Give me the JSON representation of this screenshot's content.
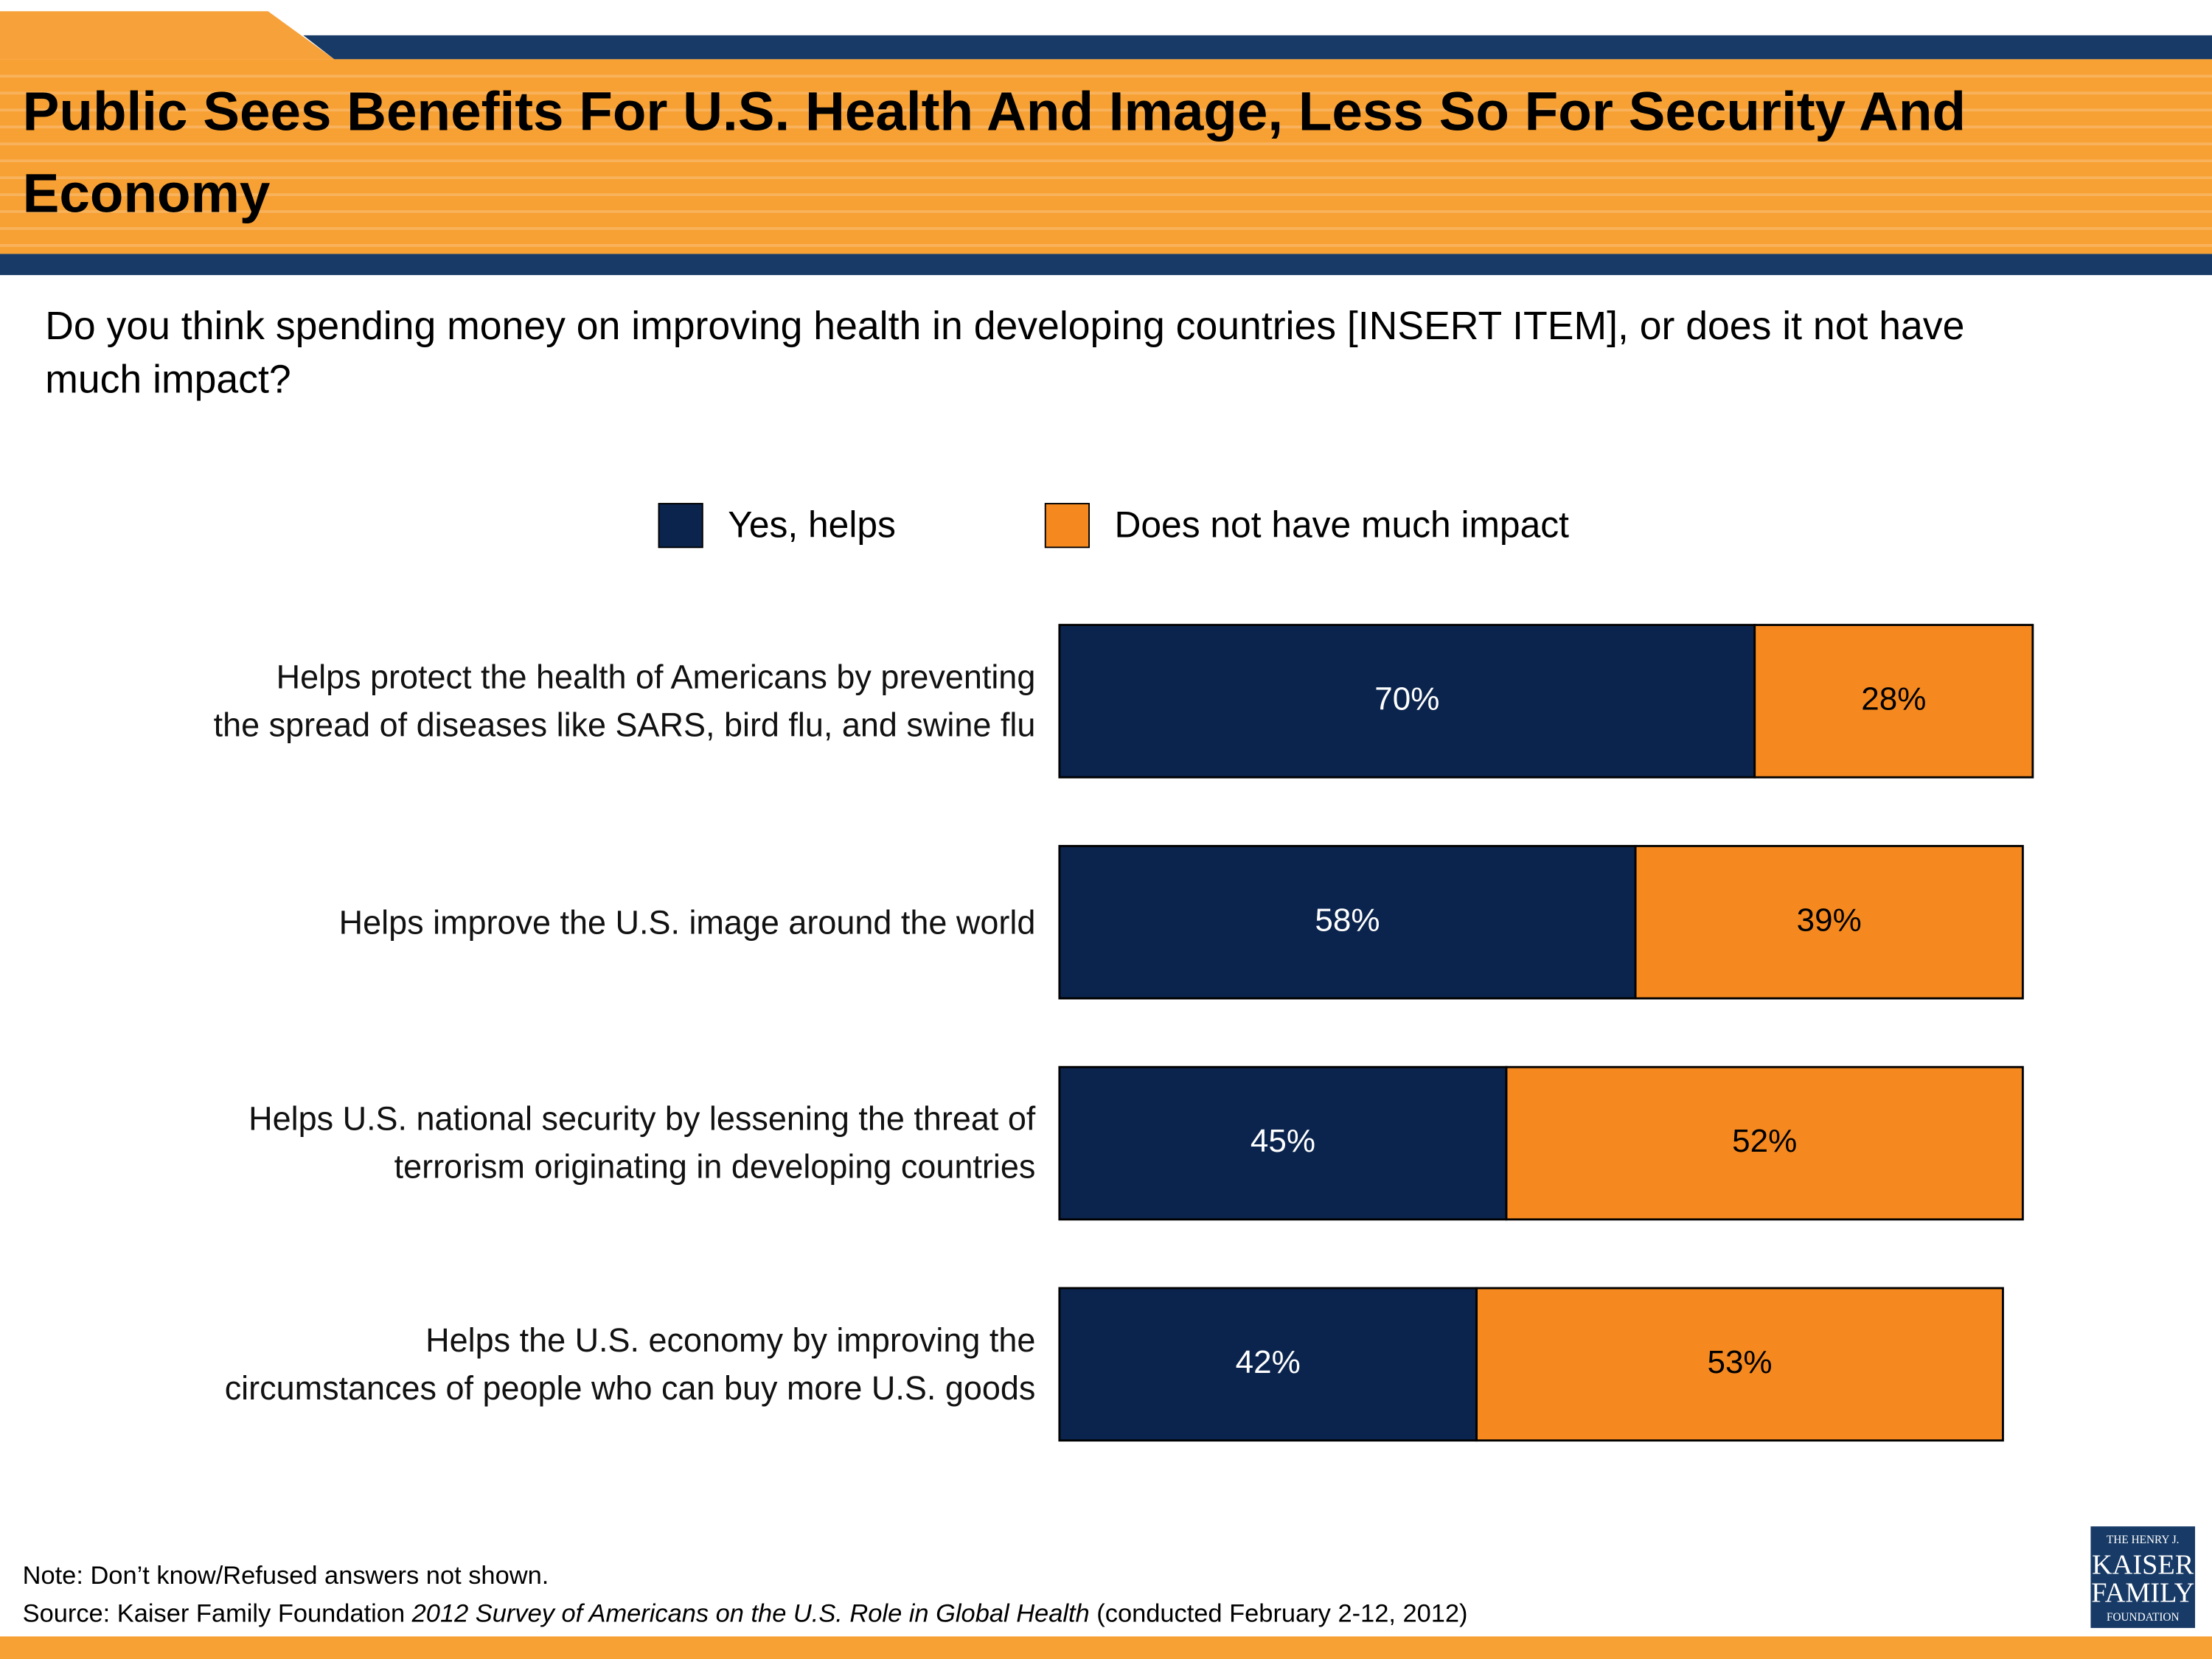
{
  "chart_data": {
    "type": "stacked-bar-horizontal",
    "title": [
      "Public Sees Benefits For U.S. Health And Image, Less So For Security And",
      "Economy"
    ],
    "subtitle": [
      "Do you think spending money on improving health in developing countries [INSERT ITEM], or does it not have",
      "much impact?"
    ],
    "categories": [
      "Helps protect the health of Americans by preventing\nthe spread of diseases like SARS, bird flu, and swine flu",
      "Helps improve the U.S. image around the world",
      "Helps U.S. national security by lessening the threat of\nterrorism originating in developing countries",
      "Helps the U.S. economy by improving the\ncircumstances of people who can buy more U.S. goods"
    ],
    "series": [
      {
        "name": "Yes, helps",
        "color": "#0b244d",
        "values": [
          70,
          58,
          45,
          42
        ],
        "value_labels": [
          "70%",
          "58%",
          "45%",
          "42%"
        ],
        "label_color": "#ffffff"
      },
      {
        "name": "Does not have much impact",
        "color": "#f5891f",
        "values": [
          28,
          39,
          52,
          53
        ],
        "value_labels": [
          "28%",
          "39%",
          "52%",
          "53%"
        ],
        "label_color": "#000000"
      }
    ],
    "xlim": [
      0,
      100
    ],
    "note": "Note: Don’t know/Refused answers not shown.",
    "source": {
      "prefix": "Source: Kaiser Family Foundation ",
      "title": "2012 Survey of Americans on the U.S. Role in Global Health",
      "suffix": " (conducted February 2-12, 2012)"
    },
    "logo": [
      "THE HENRY J.",
      "KAISER",
      "FAMILY",
      "FOUNDATION"
    ]
  }
}
